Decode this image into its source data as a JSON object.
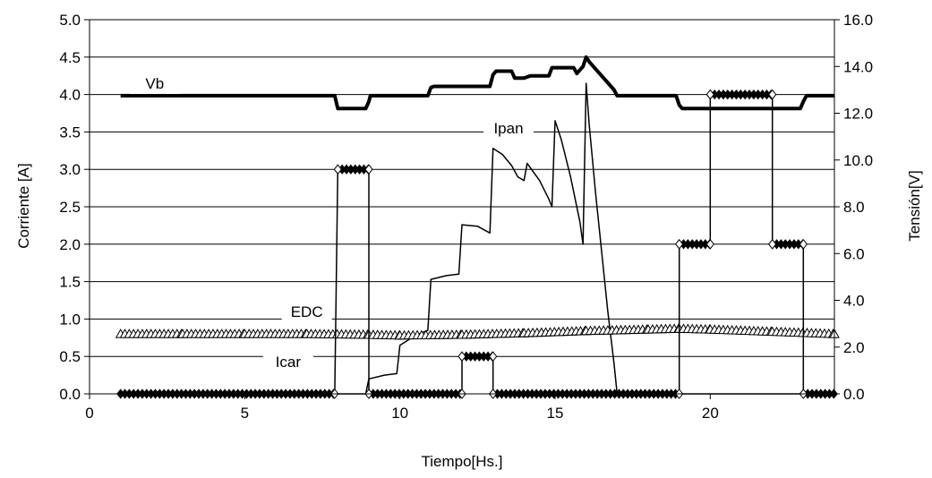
{
  "chart_data": {
    "type": "line",
    "title": "",
    "xlabel": "Tiempo[Hs.]",
    "ylabel_left": "Corriente [A]",
    "ylabel_right": "Tensión[V]",
    "xlim": [
      0,
      24
    ],
    "xticks": [
      "0",
      "5",
      "10",
      "15",
      "20"
    ],
    "ylim_left": [
      0,
      5
    ],
    "yticks_left": [
      "0.0",
      "0.5",
      "1.0",
      "1.5",
      "2.0",
      "2.5",
      "3.0",
      "3.5",
      "4.0",
      "4.5",
      "5.0"
    ],
    "ylim_right": [
      0,
      16
    ],
    "yticks_right": [
      "0.0",
      "2.0",
      "4.0",
      "6.0",
      "8.0",
      "10.0",
      "12.0",
      "14.0",
      "16.0"
    ],
    "grid": "horizontal",
    "legend": "none",
    "series": [
      {
        "name": "Vb",
        "axis": "right",
        "style": "thick-line",
        "x": [
          1,
          7.9,
          8,
          8.05,
          8.9,
          9,
          9.05,
          10.9,
          11,
          11.1,
          12.9,
          13,
          13.1,
          13.6,
          13.7,
          14,
          14.2,
          14.8,
          14.9,
          15.6,
          15.7,
          15.9,
          16,
          16.1,
          16.3,
          16.5,
          16.7,
          16.9,
          17,
          18.9,
          19,
          19.1,
          22.9,
          23,
          23.1,
          24
        ],
        "y": [
          12.75,
          12.75,
          12.2,
          12.2,
          12.2,
          12.5,
          12.75,
          12.75,
          13.1,
          13.15,
          13.15,
          13.65,
          13.8,
          13.8,
          13.5,
          13.5,
          13.6,
          13.6,
          13.95,
          13.95,
          13.7,
          14.0,
          14.4,
          14.2,
          13.9,
          13.6,
          13.3,
          13.0,
          12.75,
          12.75,
          12.35,
          12.2,
          12.2,
          12.5,
          12.75,
          12.75
        ]
      },
      {
        "name": "Ipan",
        "axis": "left",
        "style": "thin-line",
        "x": [
          1,
          8.9,
          9,
          9.5,
          9.9,
          10,
          10.5,
          10.9,
          11,
          11.5,
          11.9,
          12,
          12.5,
          12.9,
          13,
          13.3,
          13.6,
          13.8,
          14,
          14.1,
          14.5,
          14.8,
          14.9,
          15,
          15.2,
          15.5,
          15.8,
          15.9,
          16,
          16.1,
          16.3,
          16.7,
          16.9,
          17,
          24
        ],
        "y": [
          0,
          0,
          0.2,
          0.25,
          0.27,
          0.65,
          0.78,
          0.85,
          1.53,
          1.58,
          1.6,
          2.26,
          2.24,
          2.15,
          3.28,
          3.2,
          3.05,
          2.9,
          2.85,
          3.08,
          2.85,
          2.6,
          2.5,
          3.65,
          3.4,
          2.9,
          2.3,
          2.0,
          4.15,
          3.6,
          2.7,
          1.1,
          0.4,
          0,
          0
        ]
      },
      {
        "name": "EDC",
        "axis": "left",
        "style": "triangle-markers",
        "x": [
          1,
          3,
          5,
          7,
          9,
          10,
          12,
          14,
          16,
          18,
          19,
          20,
          22,
          24
        ],
        "y": [
          0.8,
          0.8,
          0.8,
          0.8,
          0.79,
          0.78,
          0.79,
          0.81,
          0.84,
          0.86,
          0.87,
          0.86,
          0.83,
          0.8
        ]
      },
      {
        "name": "Icar",
        "axis": "left",
        "style": "diamond-markers",
        "x": [
          1,
          7.9,
          8,
          9,
          9,
          12,
          12,
          13,
          13,
          19,
          19,
          20,
          20,
          22,
          22,
          23,
          23,
          24
        ],
        "y": [
          0,
          0,
          3,
          3,
          0,
          0,
          0.5,
          0.5,
          0,
          0,
          2,
          2,
          4,
          4,
          2,
          2,
          0,
          0
        ]
      }
    ]
  }
}
